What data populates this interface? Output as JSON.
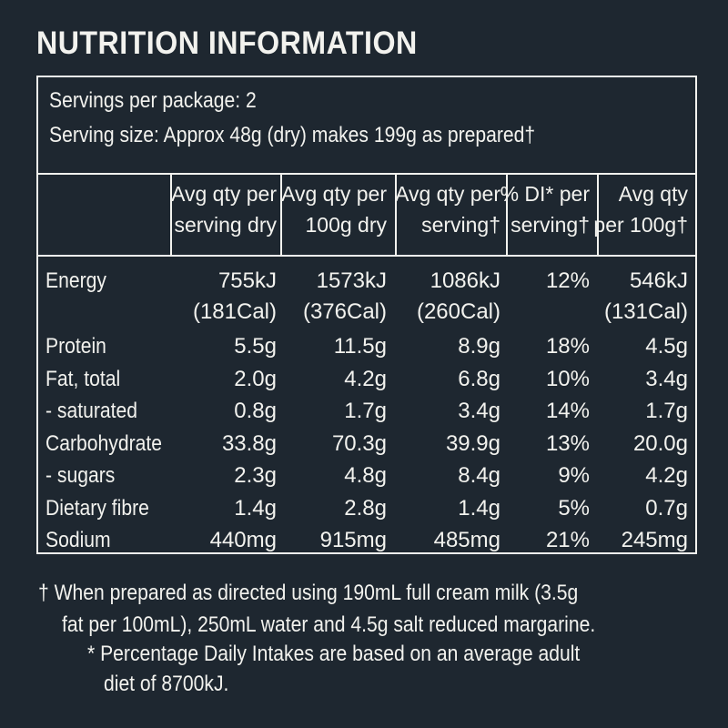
{
  "title": "NUTRITION INFORMATION",
  "servings_per_package": "Servings per package: 2",
  "serving_size": "Serving size: Approx 48g (dry) makes 199g as prepared†",
  "headers": [
    [
      "Avg qty per",
      "serving dry"
    ],
    [
      "Avg qty per",
      "100g dry"
    ],
    [
      "Avg qty per",
      "serving†"
    ],
    [
      "% DI* per",
      "serving†"
    ],
    [
      "Avg qty",
      "per 100g†"
    ]
  ],
  "energy": {
    "label": "Energy",
    "kj": [
      "755kJ",
      "1573kJ",
      "1086kJ",
      "12%",
      "546kJ"
    ],
    "cal": [
      "(181Cal)",
      "(376Cal)",
      "(260Cal)",
      "",
      "(131Cal)"
    ]
  },
  "rows": [
    {
      "label": "Protein",
      "values": [
        "5.5g",
        "11.5g",
        "8.9g",
        "18%",
        "4.5g"
      ]
    },
    {
      "label": "Fat, total",
      "values": [
        "2.0g",
        "4.2g",
        "6.8g",
        "10%",
        "3.4g"
      ]
    },
    {
      "label": "- saturated",
      "values": [
        "0.8g",
        "1.7g",
        "3.4g",
        "14%",
        "1.7g"
      ]
    },
    {
      "label": "Carbohydrate",
      "values": [
        "33.8g",
        "70.3g",
        "39.9g",
        "13%",
        "20.0g"
      ]
    },
    {
      "label": "- sugars",
      "values": [
        "2.3g",
        "4.8g",
        "8.4g",
        "9%",
        "4.2g"
      ]
    },
    {
      "label": "Dietary fibre",
      "values": [
        "1.4g",
        "2.8g",
        "1.4g",
        "5%",
        "0.7g"
      ]
    },
    {
      "label": "Sodium",
      "values": [
        "440mg",
        "915mg",
        "485mg",
        "21%",
        "245mg"
      ]
    }
  ],
  "footnotes": {
    "dagger_line1": "† When prepared as directed using 190mL full cream milk (3.5g",
    "dagger_line2": "fat per 100mL), 250mL water and 4.5g salt reduced margarine.",
    "star_line1": "* Percentage Daily Intakes are based on an average adult",
    "star_line2": "diet of 8700kJ."
  }
}
